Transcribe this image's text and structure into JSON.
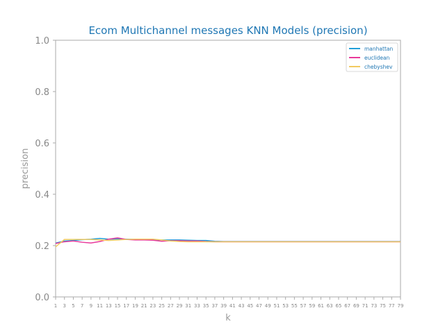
{
  "chart_data": {
    "type": "line",
    "title": "Ecom Multichannel messages KNN Models (precision)",
    "xlabel": "k",
    "ylabel": "precision",
    "ylim": [
      0,
      1
    ],
    "xlim": [
      1,
      79
    ],
    "yticks": [
      "0.0",
      "0.2",
      "0.4",
      "0.6",
      "0.8",
      "1.0"
    ],
    "x": [
      1,
      3,
      5,
      7,
      9,
      11,
      13,
      15,
      17,
      19,
      21,
      23,
      25,
      27,
      29,
      31,
      33,
      35,
      37,
      39,
      41,
      43,
      45,
      47,
      49,
      51,
      53,
      55,
      57,
      59,
      61,
      63,
      65,
      67,
      69,
      71,
      73,
      75,
      77,
      79
    ],
    "grid": false,
    "legend_position": "top-right",
    "series": [
      {
        "name": "manhattan",
        "color": "#1f9ed8",
        "values": [
          0.21,
          0.218,
          0.22,
          0.223,
          0.225,
          0.228,
          0.225,
          0.226,
          0.225,
          0.224,
          0.223,
          0.223,
          0.222,
          0.222,
          0.222,
          0.221,
          0.22,
          0.22,
          0.217,
          0.216,
          0.216,
          0.216,
          0.216,
          0.216,
          0.216,
          0.216,
          0.216,
          0.216,
          0.216,
          0.216,
          0.216,
          0.216,
          0.216,
          0.216,
          0.216,
          0.216,
          0.216,
          0.216,
          0.216,
          0.216
        ]
      },
      {
        "name": "euclidean",
        "color": "#e8389a",
        "values": [
          0.208,
          0.215,
          0.218,
          0.213,
          0.21,
          0.216,
          0.225,
          0.23,
          0.224,
          0.222,
          0.222,
          0.221,
          0.217,
          0.219,
          0.219,
          0.218,
          0.218,
          0.216,
          0.215,
          0.215,
          0.215,
          0.215,
          0.215,
          0.215,
          0.215,
          0.215,
          0.215,
          0.215,
          0.215,
          0.215,
          0.215,
          0.215,
          0.215,
          0.215,
          0.215,
          0.215,
          0.215,
          0.215,
          0.215,
          0.215
        ]
      },
      {
        "name": "chebyshev",
        "color": "#f2ca60",
        "values": [
          0.195,
          0.224,
          0.224,
          0.224,
          0.224,
          0.222,
          0.22,
          0.222,
          0.224,
          0.225,
          0.225,
          0.225,
          0.222,
          0.218,
          0.216,
          0.215,
          0.215,
          0.215,
          0.215,
          0.215,
          0.215,
          0.215,
          0.215,
          0.215,
          0.215,
          0.215,
          0.215,
          0.215,
          0.215,
          0.215,
          0.215,
          0.215,
          0.215,
          0.215,
          0.215,
          0.215,
          0.215,
          0.215,
          0.215,
          0.215
        ]
      }
    ]
  }
}
